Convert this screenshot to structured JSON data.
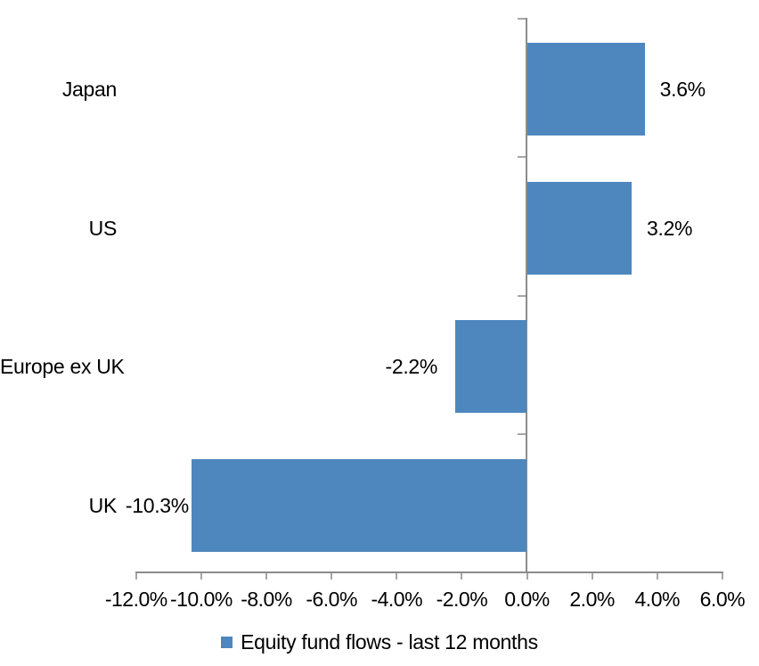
{
  "chart_data": {
    "type": "bar",
    "orientation": "horizontal",
    "title": "",
    "categories": [
      "Japan",
      "US",
      "Europe ex UK",
      "UK"
    ],
    "values": [
      3.6,
      3.2,
      -2.2,
      -10.3
    ],
    "data_labels": [
      "3.6%",
      "3.2%",
      "-2.2%",
      "-10.3%"
    ],
    "series_name": "Equity fund flows - last 12 months",
    "xlabel": "",
    "ylabel": "",
    "xlim": [
      -12,
      6
    ],
    "x_ticks": [
      -12,
      -10,
      -8,
      -6,
      -4,
      -2,
      0,
      2,
      4,
      6
    ],
    "x_tick_labels": [
      "-12.0%",
      "-10.0%",
      "-8.0%",
      "-6.0%",
      "-4.0%",
      "-2.0%",
      "0.0%",
      "2.0%",
      "4.0%",
      "6.0%"
    ],
    "grid": false,
    "legend_position": "bottom",
    "bar_color": "#4E87BE",
    "axis_color": "#8C8C8C",
    "tick_color": "#A6A6A6",
    "text_color": "#000000",
    "background": "#FFFFFF"
  },
  "legend": {
    "label": "Equity fund flows - last 12 months"
  }
}
